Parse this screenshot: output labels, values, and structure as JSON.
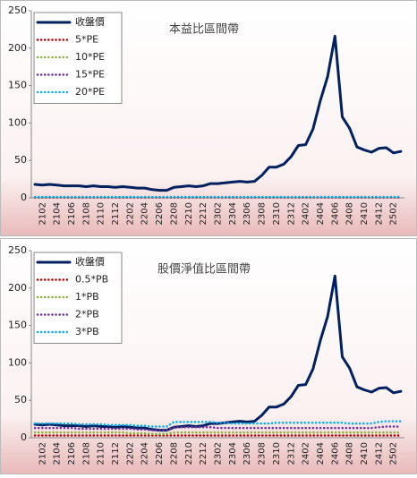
{
  "chart_data": [
    {
      "type": "line",
      "title": "本益比區間帶",
      "categories": [
        null,
        "2102",
        null,
        "2104",
        null,
        "2106",
        null,
        "2108",
        null,
        "2110",
        null,
        "2112",
        null,
        "2202",
        null,
        "2204",
        null,
        "2206",
        null,
        "2208",
        null,
        "2210",
        null,
        "2212",
        null,
        "2302",
        null,
        "2304",
        null,
        "2306",
        null,
        "2308",
        null,
        "2310",
        null,
        "2312",
        null,
        "2402",
        null,
        "2404",
        null,
        "2406",
        null,
        "2408",
        null,
        "2410",
        null,
        "2412",
        null,
        "2502",
        null
      ],
      "series": [
        {
          "name": "收盤價",
          "color": "#002060",
          "values": [
            18,
            17,
            18,
            17,
            16,
            16,
            16,
            15,
            16,
            15,
            15,
            14,
            15,
            14,
            13,
            13,
            11,
            10,
            10,
            14,
            15,
            16,
            15,
            16,
            19,
            19,
            20,
            21,
            22,
            21,
            22,
            30,
            41,
            41,
            45,
            55,
            70,
            71,
            92,
            130,
            162,
            216,
            108,
            93,
            68,
            64,
            61,
            66,
            67,
            60,
            62
          ]
        },
        {
          "name": "5*PE",
          "color": "#c00000",
          "values": [
            0.3,
            0.3,
            0.3,
            0.3,
            0.3,
            0.3,
            0.3,
            0.3,
            0.3,
            0.3,
            0.3,
            0.3,
            0.3,
            0.3,
            0.3,
            0.3,
            0.3,
            0.3,
            0.3,
            0.3,
            0.3,
            0.3,
            0.3,
            0.3,
            0.3,
            0.3,
            0.3,
            0.3,
            0.3,
            0.3,
            0.3,
            0.3,
            0.3,
            0.3,
            0.3,
            0.3,
            0.3,
            0.3,
            0.3,
            0.3,
            0.3,
            0.3,
            0.3,
            0.3,
            0.3,
            0.3,
            0.3,
            0.3,
            0.3,
            0.3,
            0.3
          ]
        },
        {
          "name": "10*PE",
          "color": "#8db33a",
          "values": [
            0.6,
            0.6,
            0.6,
            0.6,
            0.6,
            0.6,
            0.6,
            0.6,
            0.6,
            0.6,
            0.6,
            0.6,
            0.6,
            0.6,
            0.6,
            0.6,
            0.6,
            0.6,
            0.6,
            0.6,
            0.6,
            0.6,
            0.6,
            0.6,
            0.6,
            0.6,
            0.6,
            0.6,
            0.6,
            0.6,
            0.6,
            0.6,
            0.6,
            0.6,
            0.6,
            0.6,
            0.6,
            0.6,
            0.6,
            0.6,
            0.6,
            0.6,
            0.6,
            0.6,
            0.6,
            0.6,
            0.6,
            0.6,
            0.6,
            0.6,
            0.6
          ]
        },
        {
          "name": "15*PE",
          "color": "#7030a0",
          "values": [
            0.9,
            0.9,
            0.9,
            0.9,
            0.9,
            0.9,
            0.9,
            0.9,
            0.9,
            0.9,
            0.9,
            0.9,
            0.9,
            0.9,
            0.9,
            0.9,
            0.9,
            0.9,
            0.9,
            0.9,
            0.9,
            0.9,
            0.9,
            0.9,
            0.9,
            0.9,
            0.9,
            0.9,
            0.9,
            0.9,
            0.9,
            0.9,
            0.9,
            0.9,
            0.9,
            0.9,
            0.9,
            0.9,
            0.9,
            0.9,
            0.9,
            0.9,
            0.9,
            0.9,
            0.9,
            0.9,
            0.9,
            0.9,
            0.9,
            0.9,
            0.9
          ]
        },
        {
          "name": "20*PE",
          "color": "#00b0f0",
          "values": [
            1.2,
            1.2,
            1.2,
            1.2,
            1.2,
            1.2,
            1.2,
            1.2,
            1.2,
            1.2,
            1.2,
            1.2,
            1.2,
            1.2,
            1.2,
            1.2,
            1.2,
            1.2,
            1.2,
            1.2,
            1.2,
            1.2,
            1.2,
            1.2,
            1.2,
            1.2,
            1.2,
            1.2,
            1.2,
            1.2,
            1.2,
            1.2,
            1.2,
            1.2,
            1.2,
            1.2,
            1.2,
            1.2,
            1.2,
            1.2,
            1.2,
            1.2,
            1.2,
            1.2,
            1.2,
            1.2,
            1.2,
            1.2,
            1.2,
            1.2,
            1.2
          ]
        }
      ],
      "ylim": [
        0,
        250
      ],
      "yticks": [
        0,
        50,
        100,
        150,
        200,
        250
      ],
      "legend": "upper left"
    },
    {
      "type": "line",
      "title": "股價淨值比區間帶",
      "categories": [
        null,
        "2102",
        null,
        "2104",
        null,
        "2106",
        null,
        "2108",
        null,
        "2110",
        null,
        "2112",
        null,
        "2202",
        null,
        "2204",
        null,
        "2206",
        null,
        "2208",
        null,
        "2210",
        null,
        "2212",
        null,
        "2302",
        null,
        "2304",
        null,
        "2306",
        null,
        "2308",
        null,
        "2310",
        null,
        "2312",
        null,
        "2402",
        null,
        "2404",
        null,
        "2406",
        null,
        "2408",
        null,
        "2410",
        null,
        "2412",
        null,
        "2502",
        null
      ],
      "series": [
        {
          "name": "收盤價",
          "color": "#002060",
          "values": [
            18,
            17,
            18,
            17,
            16,
            16,
            16,
            15,
            16,
            15,
            15,
            14,
            15,
            14,
            13,
            13,
            11,
            10,
            10,
            14,
            15,
            16,
            15,
            16,
            19,
            19,
            20,
            21,
            22,
            21,
            22,
            30,
            41,
            41,
            45,
            55,
            70,
            71,
            92,
            130,
            162,
            216,
            108,
            93,
            68,
            64,
            61,
            66,
            67,
            60,
            62
          ]
        },
        {
          "name": "0.5*PB",
          "color": "#c00000",
          "values": [
            3,
            3,
            3,
            3,
            3,
            3,
            3,
            3,
            3,
            3,
            3,
            3,
            3,
            3,
            3,
            3,
            3,
            3,
            3,
            3,
            3,
            3,
            3,
            3,
            3,
            3,
            3,
            3,
            3,
            3,
            3,
            3,
            3,
            3,
            3,
            3,
            3,
            3,
            3,
            3,
            3,
            3,
            3,
            3,
            3,
            3,
            3,
            3,
            3,
            3,
            3
          ]
        },
        {
          "name": "1*PB",
          "color": "#8db33a",
          "values": [
            7,
            7,
            7,
            7,
            7,
            7,
            7,
            7,
            7,
            7,
            7,
            7,
            7,
            6,
            6,
            6,
            5,
            5,
            5,
            7,
            7,
            7,
            7,
            7,
            7,
            7,
            7,
            7,
            7,
            7,
            7,
            7,
            7,
            7,
            7,
            7,
            7,
            7,
            7,
            7,
            7,
            7,
            7,
            7,
            7,
            7,
            7,
            7,
            7,
            7,
            7
          ]
        },
        {
          "name": "2*PB",
          "color": "#7030a0",
          "values": [
            13,
            13,
            13,
            13,
            13,
            13,
            12,
            12,
            12,
            12,
            12,
            12,
            12,
            12,
            11,
            11,
            10,
            10,
            10,
            14,
            14,
            14,
            14,
            14,
            14,
            13,
            13,
            13,
            13,
            13,
            13,
            13,
            13,
            13,
            13,
            13,
            13,
            13,
            13,
            13,
            13,
            13,
            13,
            13,
            13,
            13,
            13,
            14,
            15,
            15,
            15
          ]
        },
        {
          "name": "3*PB",
          "color": "#00b0f0",
          "values": [
            19,
            19,
            19,
            19,
            19,
            19,
            18,
            18,
            18,
            18,
            17,
            17,
            17,
            17,
            16,
            16,
            15,
            15,
            15,
            21,
            21,
            21,
            21,
            21,
            21,
            20,
            20,
            19,
            19,
            19,
            19,
            19,
            19,
            20,
            20,
            20,
            20,
            20,
            20,
            20,
            20,
            20,
            20,
            19,
            19,
            19,
            19,
            21,
            22,
            22,
            22
          ]
        }
      ],
      "ylim": [
        0,
        250
      ],
      "yticks": [
        0,
        50,
        100,
        150,
        200,
        250
      ],
      "legend": "upper left"
    }
  ]
}
